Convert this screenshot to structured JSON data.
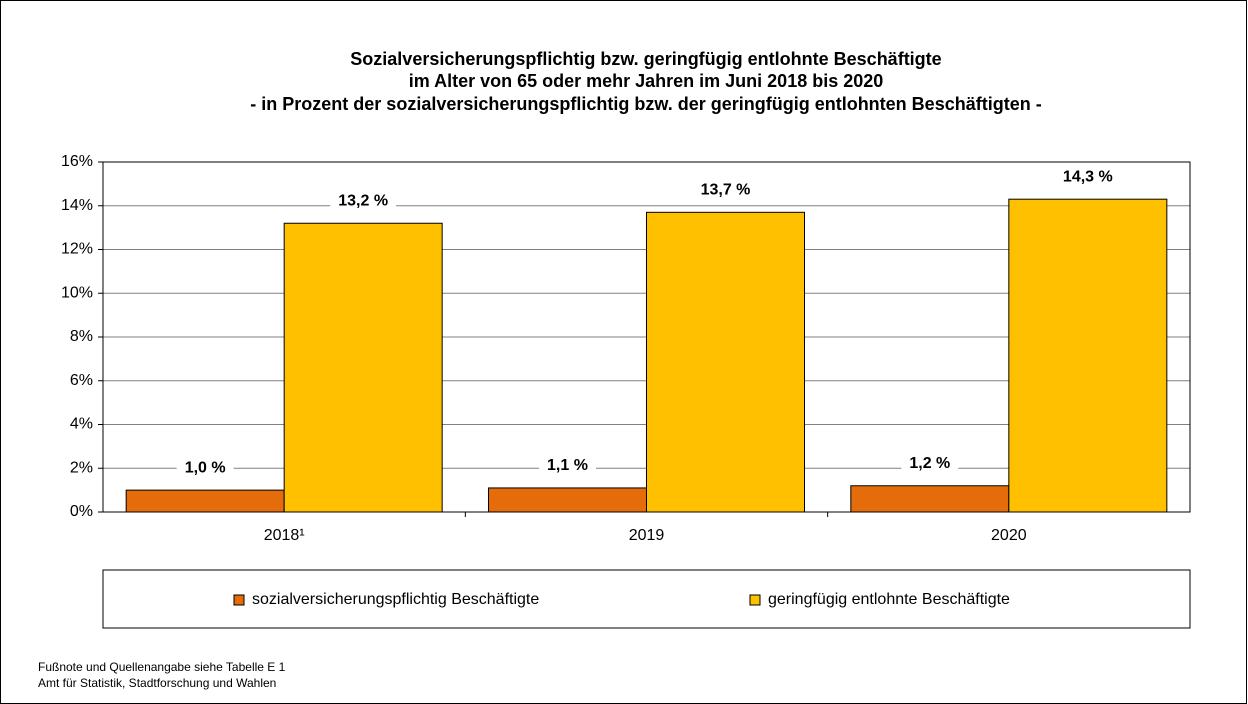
{
  "chart_data": {
    "type": "bar",
    "title": [
      "Sozialversicherungspflichtig bzw. geringfügig entlohnte Beschäftigte",
      "im Alter von 65 oder mehr Jahren im Juni 2018 bis 2020",
      "- in Prozent der sozialversicherungspflichtig bzw. der geringfügig entlohnten Beschäftigten -"
    ],
    "categories": [
      "2018¹",
      "2019",
      "2020"
    ],
    "series": [
      {
        "name": "sozialversicherungspflichtig Beschäftigte",
        "color": "#e46c0a",
        "values": [
          1.0,
          1.1,
          1.2
        ],
        "value_labels": [
          "1,0 %",
          "1,1 %",
          "1,2 %"
        ]
      },
      {
        "name": "geringfügig entlohnte Beschäftigte",
        "color": "#ffc000",
        "values": [
          13.2,
          13.7,
          14.3
        ],
        "value_labels": [
          "13,2 %",
          "13,7 %",
          "14,3 %"
        ]
      }
    ],
    "ylim": [
      0,
      16
    ],
    "yticks": [
      {
        "value": 0,
        "label": "0%"
      },
      {
        "value": 2,
        "label": "2%"
      },
      {
        "value": 4,
        "label": "4%"
      },
      {
        "value": 6,
        "label": "6%"
      },
      {
        "value": 8,
        "label": "8%"
      },
      {
        "value": 10,
        "label": "10%"
      },
      {
        "value": 12,
        "label": "12%"
      },
      {
        "value": 14,
        "label": "14%"
      },
      {
        "value": 16,
        "label": "16%"
      }
    ],
    "grid": true,
    "legend": "bottom",
    "footnotes": [
      "Fußnote und Quellenangabe siehe Tabelle E 1",
      "Amt für Statistik, Stadtforschung und Wahlen"
    ]
  }
}
